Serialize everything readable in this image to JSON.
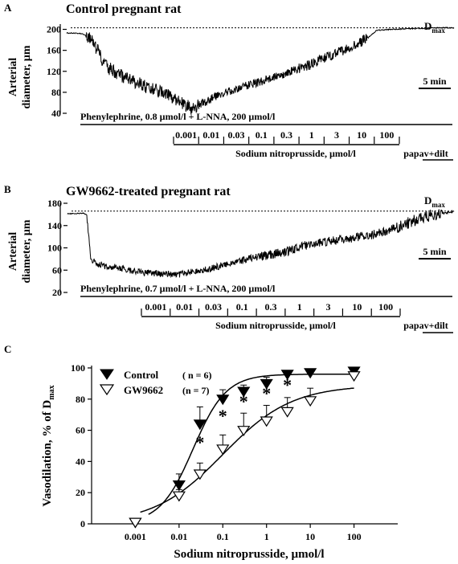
{
  "chart_data": [
    {
      "panel": "A",
      "type": "line",
      "title": "Control pregnant rat",
      "ylabel_line1": "Arterial",
      "ylabel_line2": "diameter, µm",
      "yticks": [
        "40",
        "80",
        "120",
        "160",
        "200"
      ],
      "ylim": [
        40,
        210
      ],
      "dmax_label": "D",
      "dmax_sub": "max",
      "dmax_value": 203,
      "scale_bar": "5 min",
      "treatment": "Phenylephrine, 0.8 µmol/l + L-NNA, 200 µmol/l",
      "snp_label": "Sodium nitroprusside, µmol/l",
      "concentrations": [
        "0.001",
        "0.01",
        "0.03",
        "0.1",
        "0.3",
        "1",
        "3",
        "10",
        "100"
      ],
      "final_label": "papav+dilt",
      "trace_key_points": [
        [
          0,
          193
        ],
        [
          4,
          192
        ],
        [
          6,
          183
        ],
        [
          8,
          160
        ],
        [
          10,
          130
        ],
        [
          14,
          112
        ],
        [
          20,
          92
        ],
        [
          26,
          75
        ],
        [
          30,
          58
        ],
        [
          32,
          50
        ],
        [
          34,
          55
        ],
        [
          38,
          70
        ],
        [
          44,
          88
        ],
        [
          50,
          100
        ],
        [
          56,
          115
        ],
        [
          62,
          130
        ],
        [
          68,
          150
        ],
        [
          74,
          168
        ],
        [
          78,
          185
        ],
        [
          80,
          198
        ],
        [
          84,
          200
        ],
        [
          88,
          201
        ],
        [
          96,
          203
        ],
        [
          100,
          203
        ]
      ]
    },
    {
      "panel": "B",
      "type": "line",
      "title": "GW9662-treated pregnant rat",
      "ylabel_line1": "Arterial",
      "ylabel_line2": "diameter, µm",
      "yticks": [
        "20",
        "60",
        "100",
        "140",
        "180"
      ],
      "ylim": [
        20,
        180
      ],
      "dmax_label": "D",
      "dmax_sub": "max",
      "dmax_value": 166,
      "scale_bar": "5 min",
      "treatment": "Phenylephrine, 0.7 µmol/l + L-NNA, 200 µmol/l",
      "snp_label": "Sodium nitroprusside, µmol/l",
      "concentrations": [
        "0.001",
        "0.01",
        "0.03",
        "0.1",
        "0.3",
        "1",
        "3",
        "10",
        "100"
      ],
      "final_label": "papav+dilt",
      "trace_key_points": [
        [
          0,
          161
        ],
        [
          4,
          162
        ],
        [
          5,
          160
        ],
        [
          6,
          80
        ],
        [
          8,
          70
        ],
        [
          12,
          65
        ],
        [
          20,
          55
        ],
        [
          28,
          52
        ],
        [
          34,
          58
        ],
        [
          40,
          68
        ],
        [
          48,
          82
        ],
        [
          56,
          92
        ],
        [
          62,
          105
        ],
        [
          68,
          112
        ],
        [
          74,
          118
        ],
        [
          80,
          125
        ],
        [
          86,
          138
        ],
        [
          90,
          150
        ],
        [
          94,
          158
        ],
        [
          97,
          162
        ],
        [
          100,
          165
        ]
      ]
    },
    {
      "panel": "C",
      "type": "scatter",
      "ylabel": "Vasodilation, % of D",
      "ylabel_sub": "max",
      "xlabel": "Sodium nitroprusside, µmol/l",
      "yticks": [
        "0",
        "20",
        "40",
        "60",
        "80",
        "100"
      ],
      "xticks": [
        "0.001",
        "0.01",
        "0.1",
        "1",
        "10",
        "100"
      ],
      "ylim": [
        0,
        100
      ],
      "x": [
        0.001,
        0.01,
        0.03,
        0.1,
        0.3,
        1,
        3,
        10,
        100
      ],
      "series": [
        {
          "name": "Control",
          "n_label": "( n = 6)",
          "marker": "filled-down-triangle",
          "values": [
            1,
            25,
            64,
            80,
            85,
            90,
            96,
            97,
            98
          ],
          "errors": [
            2,
            7,
            11,
            6,
            4,
            4,
            2,
            2,
            2
          ]
        },
        {
          "name": "GW9662",
          "n_label": "(n = 7)",
          "marker": "open-down-triangle",
          "values": [
            1,
            18,
            32,
            48,
            60,
            66,
            72,
            79,
            95
          ],
          "errors": [
            2,
            4,
            7,
            9,
            11,
            10,
            9,
            8,
            3
          ]
        }
      ],
      "significance_marker": "*",
      "significant_x": [
        0.03,
        0.1,
        0.3,
        1,
        3
      ],
      "legend_position": "top-left"
    }
  ]
}
